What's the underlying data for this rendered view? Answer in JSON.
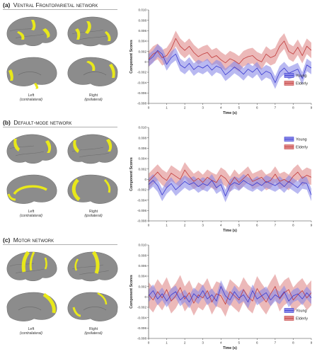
{
  "panels": [
    {
      "label": "(a)",
      "title": "Ventral Frontoparietal network",
      "left_caption": "Left",
      "left_side": "(contralateral)",
      "right_caption": "Right",
      "right_side": "(ipsilateral)"
    },
    {
      "label": "(b)",
      "title": "Default-mode network",
      "left_caption": "Left",
      "left_side": "(contralateral)",
      "right_caption": "Right",
      "right_side": "(ipsilateral)"
    },
    {
      "label": "(c)",
      "title": "Motor network",
      "left_caption": "Left",
      "left_side": "(contralateral)",
      "right_caption": "Right",
      "right_side": "(ipsilateral)"
    }
  ],
  "colors": {
    "young": "#3a3ad0",
    "young_band": "#8a8ae8",
    "elderly": "#c03a3a",
    "elderly_band": "#e08a8a",
    "brain": "#8c8c8c",
    "activation": "#e8e81a"
  },
  "chart_data": [
    {
      "type": "line",
      "xlabel": "Time (s)",
      "ylabel": "Component Scores",
      "xlim": [
        0,
        9
      ],
      "ylim": [
        -0.008,
        0.01
      ],
      "xticks": [
        "0",
        "1",
        "2",
        "3",
        "4",
        "5",
        "6",
        "7",
        "8",
        "9"
      ],
      "yticks": [
        "-0.008",
        "-0.006",
        "-0.004",
        "-0.002",
        "0",
        "0.002",
        "0.004",
        "0.006",
        "0.008",
        "0.010"
      ],
      "legend_position": "right, lower",
      "series": [
        {
          "name": "Young",
          "x": [
            0,
            0.25,
            0.5,
            0.75,
            1,
            1.25,
            1.5,
            1.75,
            2,
            2.25,
            2.5,
            2.75,
            3,
            3.25,
            3.5,
            3.75,
            4,
            4.25,
            4.5,
            4.75,
            5,
            5.25,
            5.5,
            5.75,
            6,
            6.25,
            6.5,
            6.75,
            7,
            7.25,
            7.5,
            7.75,
            8,
            8.25,
            8.5,
            8.75,
            9
          ],
          "values": [
            0.0003,
            0.001,
            0.0022,
            0.0015,
            -0.0005,
            0.0008,
            0.0015,
            -0.0006,
            -0.0012,
            -0.0003,
            -0.0015,
            -0.0008,
            -0.0012,
            -0.0006,
            -0.0016,
            -0.0008,
            -0.0012,
            -0.0025,
            -0.0018,
            -0.001,
            -0.0016,
            -0.0024,
            -0.0014,
            -0.002,
            -0.0012,
            -0.0025,
            -0.0018,
            -0.0022,
            -0.004,
            -0.002,
            -0.0012,
            -0.0022,
            -0.0018,
            -0.0014,
            -0.0032,
            -0.0006,
            -0.0012
          ],
          "band": 0.0012
        },
        {
          "name": "Elderly",
          "x": [
            0,
            0.25,
            0.5,
            0.75,
            1,
            1.25,
            1.5,
            1.75,
            2,
            2.25,
            2.5,
            2.75,
            3,
            3.25,
            3.5,
            3.75,
            4,
            4.25,
            4.5,
            4.75,
            5,
            5.25,
            5.5,
            5.75,
            6,
            6.25,
            6.5,
            6.75,
            7,
            7.25,
            7.5,
            7.75,
            8,
            8.25,
            8.5,
            8.75,
            9
          ],
          "values": [
            0.0005,
            0.0015,
            0.002,
            0.0008,
            0.0012,
            0.0025,
            0.0045,
            0.003,
            0.0022,
            0.003,
            0.0018,
            0.001,
            0.0015,
            0.0018,
            0.0008,
            0.0012,
            0.0004,
            -0.0002,
            0.0006,
            0.0002,
            -0.0004,
            0.0006,
            0.001,
            0.0012,
            0.0004,
            0.0,
            0.0015,
            0.0008,
            0.0012,
            0.003,
            0.004,
            0.002,
            0.0015,
            0.0028,
            0.0012,
            0.003,
            0.0022
          ],
          "band": 0.0015
        }
      ]
    },
    {
      "type": "line",
      "xlabel": "Time (s)",
      "ylabel": "Component Scores",
      "xlim": [
        0,
        9
      ],
      "ylim": [
        -0.008,
        0.01
      ],
      "xticks": [
        "0",
        "1",
        "2",
        "3",
        "4",
        "5",
        "6",
        "7",
        "8",
        "9"
      ],
      "yticks": [
        "-0.008",
        "-0.006",
        "-0.004",
        "-0.002",
        "0",
        "0.002",
        "0.004",
        "0.006",
        "0.008",
        "0.010"
      ],
      "legend_position": "right, upper",
      "series": [
        {
          "name": "Young",
          "x": [
            0,
            0.25,
            0.5,
            0.75,
            1,
            1.25,
            1.5,
            1.75,
            2,
            2.25,
            2.5,
            2.75,
            3,
            3.25,
            3.5,
            3.75,
            4,
            4.25,
            4.5,
            4.75,
            5,
            5.25,
            5.5,
            5.75,
            6,
            6.25,
            6.5,
            6.75,
            7,
            7.25,
            7.5,
            7.75,
            8,
            8.25,
            8.5,
            8.75,
            9
          ],
          "values": [
            -0.001,
            -0.0002,
            -0.0012,
            -0.003,
            -0.0016,
            -0.0008,
            -0.002,
            -0.0012,
            -0.0004,
            -0.001,
            -0.0006,
            -0.0014,
            -0.0008,
            -0.0012,
            -0.0002,
            -0.0016,
            -0.001,
            -0.0032,
            -0.0012,
            -0.0006,
            -0.001,
            -0.0002,
            -0.0008,
            -0.0012,
            -0.0006,
            -0.0012,
            -0.0004,
            -0.0008,
            -0.0012,
            -0.0006,
            -0.0014,
            -0.0004,
            -0.001,
            -0.0016,
            -0.0006,
            -0.0008,
            -0.003
          ],
          "band": 0.0012
        },
        {
          "name": "Elderly",
          "x": [
            0,
            0.25,
            0.5,
            0.75,
            1,
            1.25,
            1.5,
            1.75,
            2,
            2.25,
            2.5,
            2.75,
            3,
            3.25,
            3.5,
            3.75,
            4,
            4.25,
            4.5,
            4.75,
            5,
            5.25,
            5.5,
            5.75,
            6,
            6.25,
            6.5,
            6.75,
            7,
            7.25,
            7.5,
            7.75,
            8,
            8.25,
            8.5,
            8.75,
            9
          ],
          "values": [
            -0.0004,
            0.0005,
            0.0014,
            0.0004,
            -0.0002,
            0.0012,
            0.0006,
            0.0,
            0.0018,
            0.0006,
            -0.0004,
            0.0002,
            -0.0006,
            0.0004,
            -0.0002,
            -0.0006,
            0.0008,
            0.0002,
            -0.001,
            0.0004,
            -0.0006,
            0.0002,
            0.001,
            -0.0004,
            0.0,
            0.0004,
            -0.0006,
            -0.0002,
            0.001,
            -0.0004,
            0.0,
            -0.0006,
            0.0006,
            0.0014,
            0.0002,
            0.0008,
            0.0004
          ],
          "band": 0.0015
        }
      ]
    },
    {
      "type": "line",
      "xlabel": "Time (s)",
      "ylabel": "Component Scores",
      "xlim": [
        0,
        9
      ],
      "ylim": [
        -0.008,
        0.01
      ],
      "xticks": [
        "0",
        "1",
        "2",
        "3",
        "4",
        "5",
        "6",
        "7",
        "8",
        "9"
      ],
      "yticks": [
        "-0.008",
        "-0.006",
        "-0.004",
        "-0.002",
        "0",
        "0.002",
        "0.004",
        "0.006",
        "0.008",
        "0.010"
      ],
      "legend_position": "right, lower",
      "series": [
        {
          "name": "Young",
          "x": [
            0,
            0.25,
            0.5,
            0.75,
            1,
            1.25,
            1.5,
            1.75,
            2,
            2.25,
            2.5,
            2.75,
            3,
            3.25,
            3.5,
            3.75,
            4,
            4.25,
            4.5,
            4.75,
            5,
            5.25,
            5.5,
            5.75,
            6,
            6.25,
            6.5,
            6.75,
            7,
            7.25,
            7.5,
            7.75,
            8,
            8.25,
            8.5,
            8.75,
            9
          ],
          "values": [
            0.0002,
            0.0012,
            -0.0004,
            0.0006,
            -0.0008,
            0.0004,
            0.001,
            -0.0006,
            0.0002,
            -0.001,
            0.0006,
            -0.0002,
            0.0012,
            -0.0004,
            0.0004,
            -0.0008,
            0.002,
            0.0002,
            -0.0006,
            0.001,
            -0.0002,
            0.0004,
            -0.001,
            0.0012,
            -0.0004,
            0.0002,
            0.0008,
            -0.0006,
            0.0004,
            -0.0002,
            0.001,
            -0.0008,
            0.0002,
            0.0006,
            -0.0004,
            0.0008,
            -0.0002
          ],
          "band": 0.0012
        },
        {
          "name": "Elderly",
          "x": [
            0,
            0.25,
            0.5,
            0.75,
            1,
            1.25,
            1.5,
            1.75,
            2,
            2.25,
            2.5,
            2.75,
            3,
            3.25,
            3.5,
            3.75,
            4,
            4.25,
            4.5,
            4.75,
            5,
            5.25,
            5.5,
            5.75,
            6,
            6.25,
            6.5,
            6.75,
            7,
            7.25,
            7.5,
            7.75,
            8,
            8.25,
            8.5,
            8.75,
            9
          ],
          "values": [
            0.0004,
            -0.0006,
            0.001,
            -0.0002,
            0.0014,
            -0.0008,
            0.0002,
            0.0018,
            -0.0004,
            0.0008,
            -0.0012,
            0.0004,
            -0.0002,
            0.0012,
            -0.001,
            0.0006,
            0.0002,
            -0.0014,
            0.001,
            0.0002,
            -0.0006,
            0.0014,
            0.0,
            -0.0008,
            0.0016,
            0.0002,
            -0.001,
            0.0006,
            0.002,
            -0.0004,
            0.0008,
            0.0014,
            -0.0006,
            0.0004,
            0.0012,
            -0.0002,
            0.0008
          ],
          "band": 0.0024
        }
      ]
    }
  ]
}
